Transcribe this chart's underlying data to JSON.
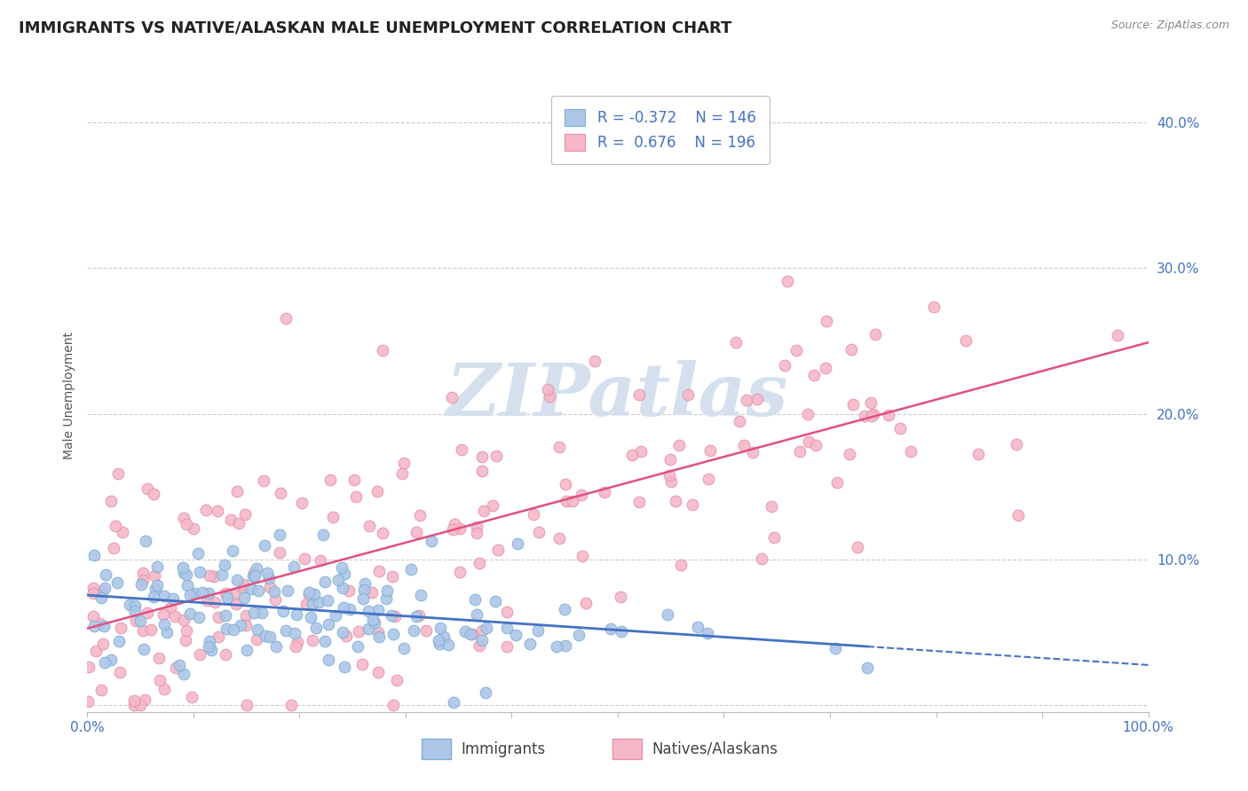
{
  "title": "IMMIGRANTS VS NATIVE/ALASKAN MALE UNEMPLOYMENT CORRELATION CHART",
  "source": "Source: ZipAtlas.com",
  "xlabel": "",
  "ylabel": "Male Unemployment",
  "xlim": [
    0,
    1.0
  ],
  "ylim": [
    -0.005,
    0.43
  ],
  "xticks": [
    0.0,
    0.1,
    0.2,
    0.3,
    0.4,
    0.5,
    0.6,
    0.7,
    0.8,
    0.9,
    1.0
  ],
  "ytick_vals": [
    0.0,
    0.1,
    0.2,
    0.3,
    0.4
  ],
  "yticklabels": [
    "",
    "10.0%",
    "20.0%",
    "30.0%",
    "40.0%"
  ],
  "immigrants_R": -0.372,
  "immigrants_N": 146,
  "natives_R": 0.676,
  "natives_N": 196,
  "immigrants_color": "#aec6e8",
  "immigrants_edge_color": "#7aafd4",
  "immigrants_line_color": "#4472c4",
  "natives_color": "#f4b8c8",
  "natives_edge_color": "#e88faa",
  "natives_line_color": "#e05080",
  "tick_label_color": "#4472c4",
  "grid_color": "#cccccc",
  "background_color": "#ffffff",
  "watermark_text": "ZIPatlas",
  "watermark_color": "#d5e0ef",
  "title_fontsize": 13,
  "axis_label_fontsize": 10,
  "tick_fontsize": 11,
  "legend_fontsize": 12,
  "immigrants_seed": 42,
  "natives_seed": 123
}
